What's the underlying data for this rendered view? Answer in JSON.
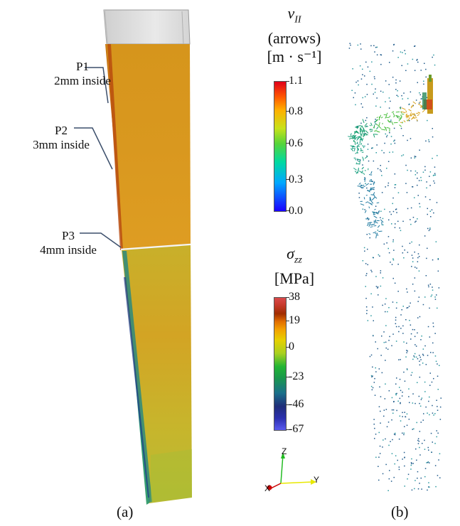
{
  "panel_a": {
    "probes": [
      {
        "name": "P1",
        "desc": "2mm inside"
      },
      {
        "name": "P2",
        "desc": "3mm inside"
      },
      {
        "name": "P3",
        "desc": "4mm inside"
      }
    ],
    "caption": "(a)"
  },
  "panel_b": {
    "caption": "(b)"
  },
  "velocity_legend": {
    "symbol": "v",
    "subscript": "II",
    "subtitle": "(arrows)",
    "unit": "[m · s⁻¹]",
    "ticks": [
      "1.1",
      "0.8",
      "0.6",
      "0.3",
      "0.0"
    ],
    "range": [
      0.0,
      1.1
    ]
  },
  "stress_legend": {
    "symbol": "σ",
    "subscript": "zz",
    "unit": "[MPa]",
    "ticks": [
      "38",
      "19",
      "0",
      "-23",
      "-46",
      "-67"
    ],
    "range": [
      -67,
      38
    ]
  },
  "axes_triad": {
    "z": "Z",
    "x": "X",
    "y": "Y"
  },
  "colors": {
    "plate_top": "#d89a1e",
    "plate_bottom": "#c8b52a",
    "glass": "#cfcfcf",
    "probe_line": "#3c4f6b",
    "arrow_fast": "#1a9a4a",
    "arrow_slow": "#1f5a8a"
  }
}
